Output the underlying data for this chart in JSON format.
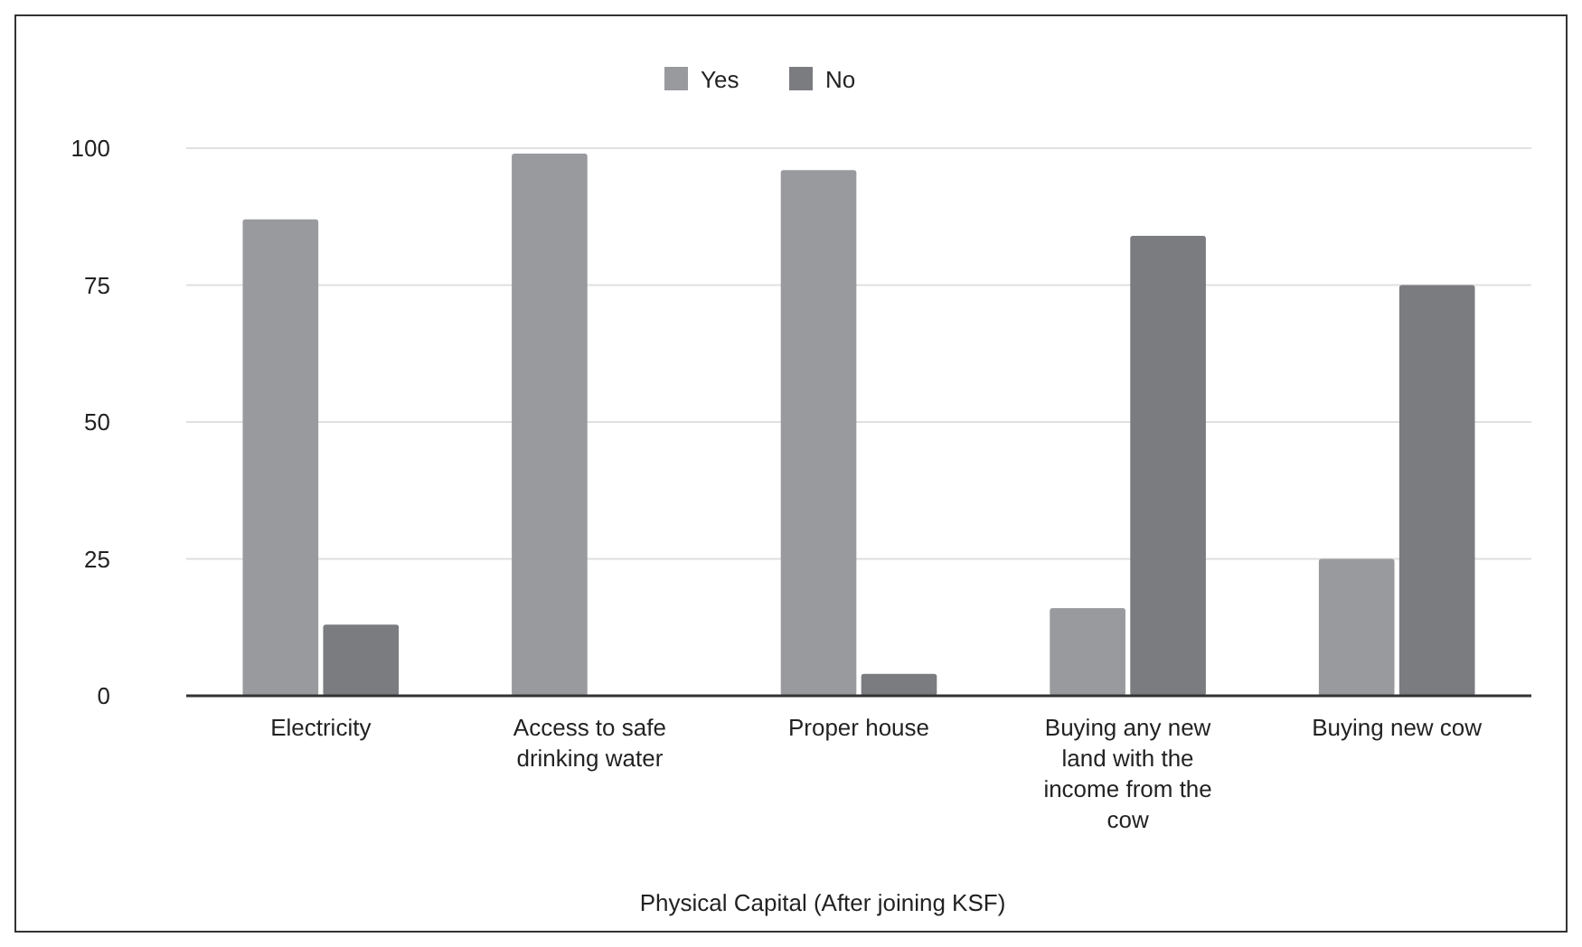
{
  "chart_data": {
    "type": "bar",
    "xlabel": "Physical Capital (After joining KSF)",
    "categories": [
      "Electricity",
      "Access to safe drinking water",
      "Proper house",
      "Buying any new land with the income from the cow",
      "Buying new cow"
    ],
    "series": [
      {
        "name": "Yes",
        "color": "#999a9e",
        "values": [
          87,
          99,
          96,
          16,
          25
        ]
      },
      {
        "name": "No",
        "color": "#7b7c80",
        "values": [
          13,
          0,
          4,
          84,
          75
        ]
      }
    ],
    "ylim": [
      0,
      100
    ],
    "yticks": [
      0,
      25,
      50,
      75,
      100
    ],
    "grid": "y",
    "legend": "top"
  }
}
